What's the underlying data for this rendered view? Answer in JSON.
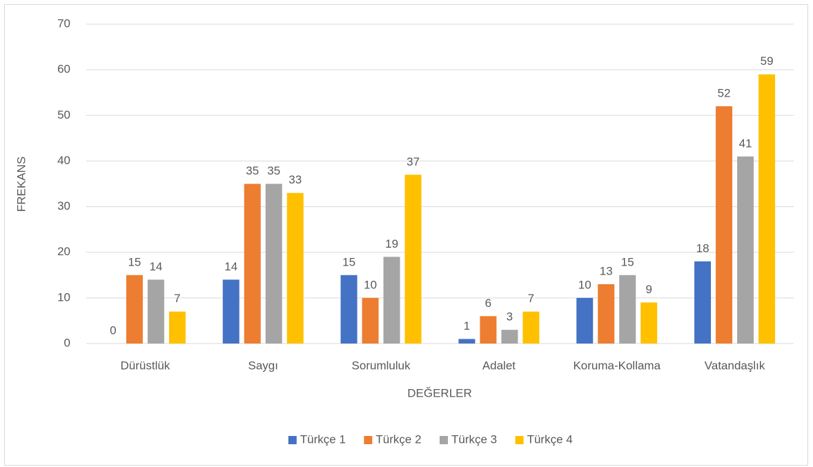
{
  "chart_data": {
    "type": "bar",
    "x_label": "DEĞERLER",
    "y_label": "FREKANS",
    "categories": [
      "Dürüstlük",
      "Saygı",
      "Sorumluluk",
      "Adalet",
      "Koruma-Kollama",
      "Vatandaşlık"
    ],
    "series": [
      {
        "name": "Türkçe 1",
        "color": "#4472c4",
        "values": [
          0,
          14,
          15,
          1,
          10,
          18
        ]
      },
      {
        "name": "Türkçe 2",
        "color": "#ed7d31",
        "values": [
          15,
          35,
          10,
          6,
          13,
          52
        ]
      },
      {
        "name": "Türkçe 3",
        "color": "#a5a5a5",
        "values": [
          14,
          35,
          19,
          3,
          15,
          41
        ]
      },
      {
        "name": "Türkçe 4",
        "color": "#ffc000",
        "values": [
          7,
          33,
          37,
          7,
          9,
          59
        ]
      }
    ],
    "ylim": [
      0,
      70
    ],
    "yticks": [
      0,
      10,
      20,
      30,
      40,
      50,
      60,
      70
    ],
    "grid": true,
    "legend": "bottom"
  }
}
